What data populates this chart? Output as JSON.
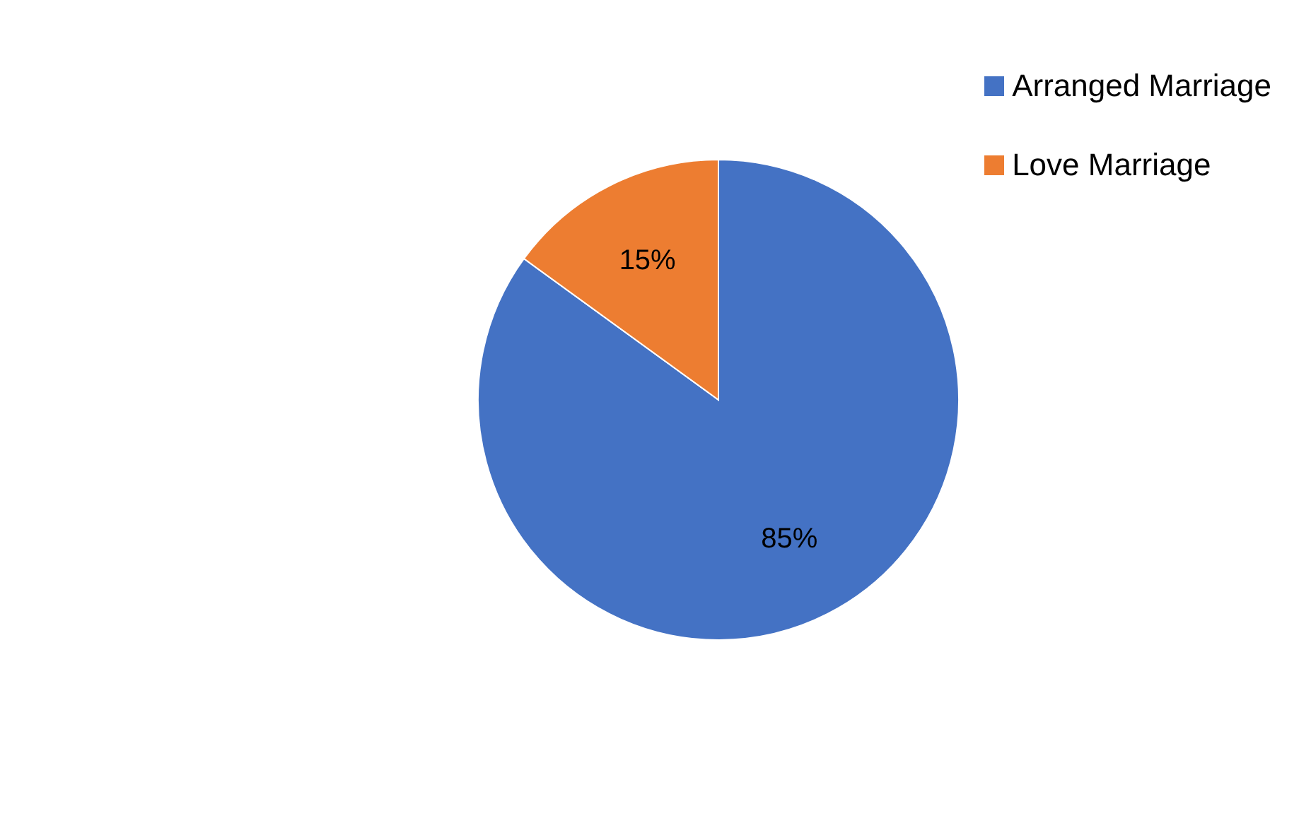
{
  "chart_data": {
    "type": "pie",
    "categories": [
      "Arranged Marriage",
      "Love Marriage"
    ],
    "values": [
      85,
      15
    ],
    "colors": [
      "#4472c4",
      "#ed7d31"
    ],
    "value_labels": [
      "85%",
      "15%"
    ],
    "legend": "top right"
  }
}
